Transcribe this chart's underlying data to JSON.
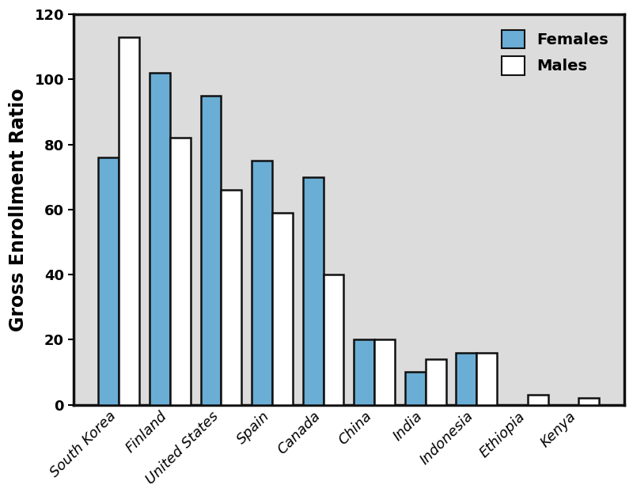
{
  "countries": [
    "South Korea",
    "Finland",
    "United States",
    "Spain",
    "Canada",
    "China",
    "India",
    "Indonesia",
    "Ethiopia",
    "Kenya"
  ],
  "females": [
    76,
    102,
    95,
    75,
    70,
    20,
    10,
    16,
    0,
    0
  ],
  "males": [
    113,
    82,
    66,
    59,
    40,
    20,
    14,
    16,
    3,
    2
  ],
  "female_color": "#6aaed6",
  "male_color": "#ffffff",
  "bar_edge_color": "#111111",
  "ylabel": "Gross Enrollment Ratio",
  "ylim": [
    0,
    120
  ],
  "yticks": [
    0,
    20,
    40,
    60,
    80,
    100,
    120
  ],
  "plot_bg_color": "#dcdcdc",
  "outer_bg_color": "#ffffff",
  "legend_labels": [
    "Females",
    "Males"
  ],
  "bar_width": 0.4,
  "ylabel_fontsize": 17,
  "tick_fontsize": 13,
  "legend_fontsize": 14,
  "spine_linewidth": 2.5
}
